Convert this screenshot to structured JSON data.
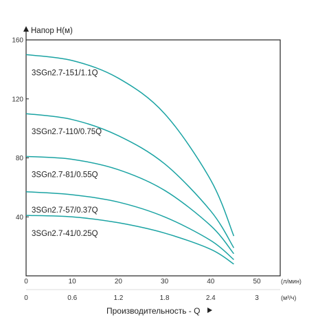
{
  "chart_data": {
    "type": "line",
    "ylabel": "Напор H(м)",
    "xlabel": "Производительность - Q",
    "x_unit_primary": "(л/мин)",
    "x_unit_secondary": "(м³/ч)",
    "xlim": [
      0,
      50
    ],
    "ylim": [
      0,
      160
    ],
    "x_ticks": [
      "0",
      "10",
      "20",
      "30",
      "40",
      "50"
    ],
    "x_ticks_secondary": [
      "0",
      "0.6",
      "1.2",
      "1.8",
      "2.4",
      "3"
    ],
    "y_ticks": [
      "40",
      "80",
      "120",
      "160"
    ],
    "grid": false,
    "line_color": "#1aa3a3",
    "series": [
      {
        "name": "3SGn2.7-151/1.1Q",
        "x": [
          0,
          10,
          20,
          30,
          40,
          45
        ],
        "y": [
          150,
          146,
          134,
          110,
          65,
          27
        ]
      },
      {
        "name": "3SGn2.7-110/0.75Q",
        "x": [
          0,
          10,
          20,
          30,
          40,
          45
        ],
        "y": [
          110,
          106,
          95,
          76,
          44,
          19
        ]
      },
      {
        "name": "3SGn2.7-81/0.55Q",
        "x": [
          0,
          10,
          20,
          30,
          40,
          45
        ],
        "y": [
          81,
          79,
          72,
          58,
          34,
          15
        ]
      },
      {
        "name": "3SGn2.7-57/0.37Q",
        "x": [
          0,
          10,
          20,
          30,
          40,
          45
        ],
        "y": [
          57,
          55,
          50,
          40,
          24,
          11
        ]
      },
      {
        "name": "3SGn2.7-41/0.25Q",
        "x": [
          0,
          10,
          20,
          30,
          40,
          45
        ],
        "y": [
          41,
          40,
          36,
          29,
          18,
          8
        ]
      }
    ]
  }
}
